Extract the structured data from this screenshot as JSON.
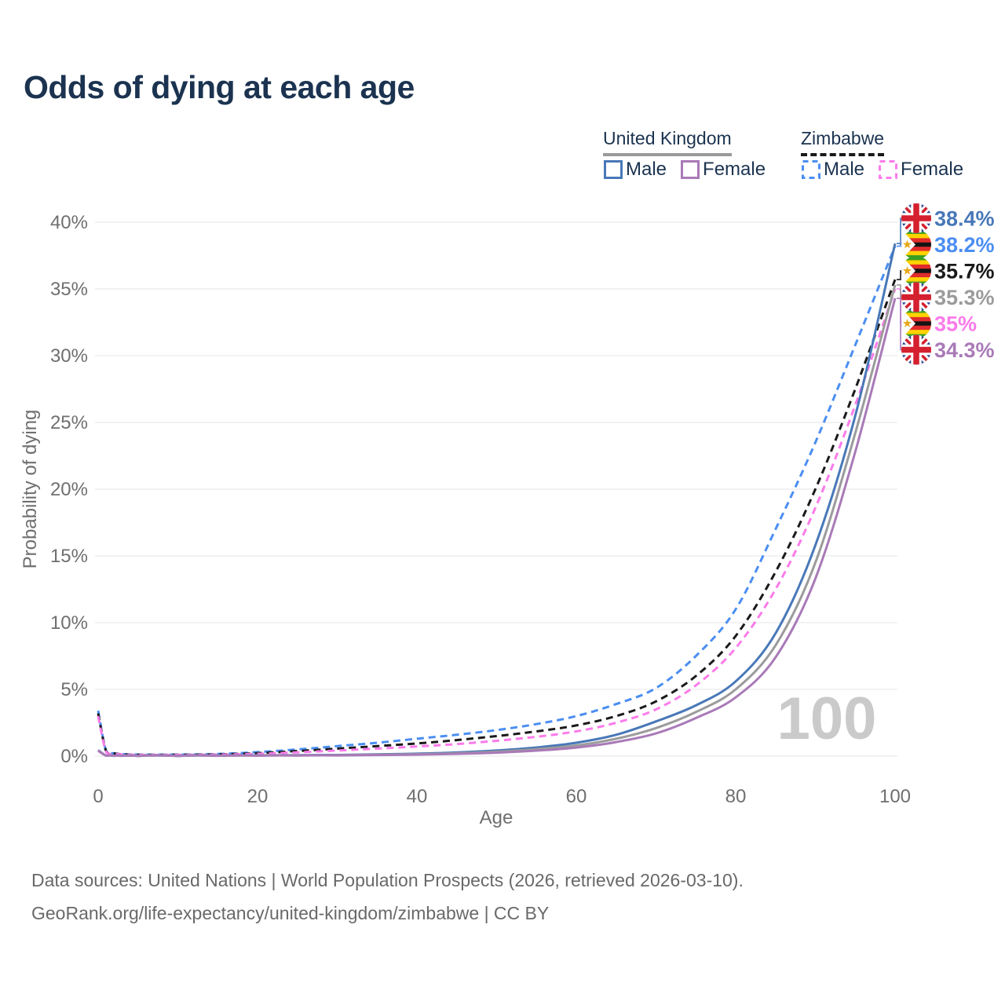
{
  "title": "Odds of dying at each age",
  "watermark": "100",
  "legend": {
    "groups": [
      {
        "name": "United Kingdom",
        "style": "solid",
        "underline_color": "#9a9a9a",
        "items": [
          {
            "label": "Male",
            "color": "#4878b8",
            "dashed": false
          },
          {
            "label": "Female",
            "color": "#a97ab8",
            "dashed": false
          }
        ]
      },
      {
        "name": "Zimbabwe",
        "style": "dashed",
        "underline_color": "#1a1a1a",
        "items": [
          {
            "label": "Male",
            "color": "#4b8ef2",
            "dashed": true
          },
          {
            "label": "Female",
            "color": "#fb7bea",
            "dashed": true
          }
        ]
      }
    ]
  },
  "footer": {
    "line1": "Data sources: United Nations | World Population Prospects (2026, retrieved 2026-03-10).",
    "line2": "GeoRank.org/life-expectancy/united-kingdom/zimbabwe | CC BY"
  },
  "chart_data": {
    "type": "line",
    "title": "Odds of dying at each age",
    "xlabel": "Age",
    "ylabel": "Probability of dying",
    "xlim": [
      0,
      100
    ],
    "ylim": [
      0,
      40
    ],
    "x_ticks": [
      0,
      20,
      40,
      60,
      80,
      100
    ],
    "y_tick_values": [
      0,
      5,
      10,
      15,
      20,
      25,
      30,
      35,
      40
    ],
    "y_ticks": [
      "0%",
      "5%",
      "10%",
      "15%",
      "20%",
      "25%",
      "30%",
      "35%",
      "40%"
    ],
    "grid": true,
    "legend_position": "top-right",
    "ages": [
      0,
      1,
      2,
      3,
      5,
      10,
      15,
      20,
      25,
      30,
      35,
      40,
      45,
      50,
      55,
      60,
      65,
      70,
      75,
      80,
      85,
      90,
      95,
      100
    ],
    "series": [
      {
        "name": "Zimbabwe Male",
        "key": "zimbabwe-male",
        "color": "#4b8ef2",
        "dashed": true,
        "flag": "zw",
        "end_label": "38.2%",
        "end_value": 38.2,
        "label_row": 1,
        "values": [
          3.4,
          0.4,
          0.22,
          0.16,
          0.12,
          0.12,
          0.16,
          0.3,
          0.5,
          0.75,
          1.0,
          1.3,
          1.6,
          1.95,
          2.4,
          3.0,
          3.9,
          5.1,
          7.5,
          11.0,
          17.0,
          23.5,
          30.8,
          38.2
        ]
      },
      {
        "name": "Zimbabwe",
        "key": "zimbabwe-total",
        "color": "#1a1a1a",
        "dashed": true,
        "flag": "zw",
        "end_label": "35.7%",
        "end_value": 35.7,
        "label_row": 2,
        "values": [
          3.2,
          0.36,
          0.2,
          0.14,
          0.1,
          0.1,
          0.13,
          0.22,
          0.38,
          0.56,
          0.75,
          0.95,
          1.2,
          1.5,
          1.85,
          2.3,
          3.0,
          4.1,
          6.0,
          9.0,
          13.8,
          20.0,
          27.5,
          35.7
        ]
      },
      {
        "name": "Zimbabwe Female",
        "key": "zimbabwe-female",
        "color": "#fb7bea",
        "dashed": true,
        "flag": "zw",
        "end_label": "35%",
        "end_value": 35.0,
        "label_row": 4,
        "values": [
          3.0,
          0.32,
          0.18,
          0.13,
          0.09,
          0.09,
          0.11,
          0.17,
          0.28,
          0.42,
          0.56,
          0.72,
          0.9,
          1.15,
          1.45,
          1.85,
          2.5,
          3.5,
          5.3,
          8.1,
          12.5,
          18.6,
          26.3,
          35.0
        ]
      },
      {
        "name": "United Kingdom Male",
        "key": "united-kingdom-male",
        "color": "#4878b8",
        "dashed": false,
        "flag": "uk",
        "end_label": "38.4%",
        "end_value": 38.4,
        "label_row": 0,
        "values": [
          0.45,
          0.04,
          0.022,
          0.018,
          0.015,
          0.015,
          0.035,
          0.06,
          0.07,
          0.09,
          0.13,
          0.18,
          0.27,
          0.42,
          0.65,
          1.0,
          1.6,
          2.6,
          3.8,
          5.6,
          9.2,
          15.8,
          25.5,
          38.4
        ]
      },
      {
        "name": "United Kingdom",
        "key": "united-kingdom-total",
        "color": "#9b9b9b",
        "dashed": false,
        "flag": "uk",
        "end_label": "35.3%",
        "end_value": 35.3,
        "label_row": 3,
        "values": [
          0.42,
          0.037,
          0.02,
          0.016,
          0.014,
          0.014,
          0.03,
          0.045,
          0.055,
          0.07,
          0.1,
          0.14,
          0.21,
          0.33,
          0.52,
          0.8,
          1.3,
          2.1,
          3.3,
          5.0,
          8.3,
          14.5,
          24.2,
          35.3
        ]
      },
      {
        "name": "United Kingdom Female",
        "key": "united-kingdom-female",
        "color": "#a97ab8",
        "dashed": false,
        "flag": "uk",
        "end_label": "34.3%",
        "end_value": 34.3,
        "label_row": 5,
        "values": [
          0.4,
          0.034,
          0.018,
          0.015,
          0.013,
          0.013,
          0.025,
          0.03,
          0.04,
          0.055,
          0.08,
          0.11,
          0.17,
          0.26,
          0.41,
          0.64,
          1.05,
          1.7,
          2.85,
          4.4,
          7.4,
          13.3,
          22.8,
          34.3
        ]
      }
    ]
  }
}
